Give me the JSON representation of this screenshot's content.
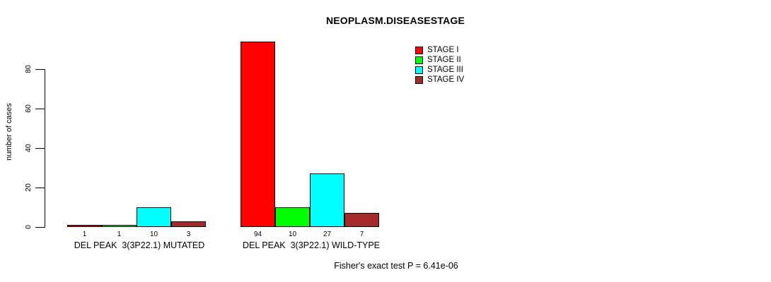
{
  "title": "NEOPLASM.DISEASESTAGE",
  "footer": "Fisher's exact test P = 6.41e-06",
  "chart_data": {
    "type": "bar",
    "title": "NEOPLASM.DISEASESTAGE",
    "xlabel": "",
    "ylabel": "number of cases",
    "ylim": [
      0,
      94
    ],
    "yticks": [
      0,
      20,
      40,
      60,
      80
    ],
    "grid": false,
    "legend_position": "top-right",
    "categories": [
      "DEL PEAK  3(3P22.1) MUTATED",
      "DEL PEAK  3(3P22.1) WILD-TYPE"
    ],
    "series": [
      {
        "name": "STAGE I",
        "color": "#FF0000",
        "values": [
          1,
          94
        ]
      },
      {
        "name": "STAGE II",
        "color": "#00FF00",
        "values": [
          1,
          10
        ]
      },
      {
        "name": "STAGE III",
        "color": "#00FFFF",
        "values": [
          10,
          27
        ]
      },
      {
        "name": "STAGE IV",
        "color": "#A52A2A",
        "values": [
          3,
          7
        ]
      }
    ],
    "bar_value_labels": [
      [
        1,
        1,
        10,
        3
      ],
      [
        94,
        10,
        27,
        7
      ]
    ],
    "annotation": "Fisher's exact test P = 6.41e-06"
  }
}
